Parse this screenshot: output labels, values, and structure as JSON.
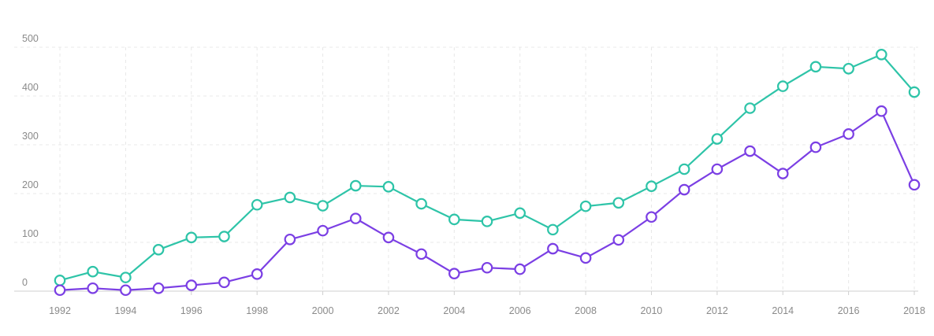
{
  "chart_data": {
    "type": "line",
    "title": "",
    "xlabel": "",
    "ylabel": "",
    "x": [
      1992,
      1993,
      1994,
      1995,
      1996,
      1997,
      1998,
      1999,
      2000,
      2001,
      2002,
      2003,
      2004,
      2005,
      2006,
      2007,
      2008,
      2009,
      2010,
      2011,
      2012,
      2013,
      2014,
      2015,
      2016,
      2017,
      2018
    ],
    "xticks": [
      "1992",
      "1994",
      "1996",
      "1998",
      "2000",
      "2002",
      "2004",
      "2006",
      "2008",
      "2010",
      "2012",
      "2014",
      "2016",
      "2018"
    ],
    "yticks": [
      "0",
      "100",
      "200",
      "300",
      "400",
      "500"
    ],
    "ylim": [
      0,
      500
    ],
    "grid": true,
    "legend": "none",
    "series": [
      {
        "color": "#2ec4a8",
        "values": [
          22,
          40,
          28,
          85,
          110,
          112,
          177,
          192,
          175,
          216,
          214,
          179,
          147,
          143,
          160,
          126,
          174,
          181,
          215,
          250,
          312,
          375,
          420,
          460,
          456,
          485,
          408
        ]
      },
      {
        "color": "#7b3fe4",
        "values": [
          2,
          6,
          2,
          6,
          12,
          18,
          35,
          106,
          124,
          149,
          110,
          76,
          36,
          48,
          45,
          87,
          68,
          105,
          152,
          208,
          250,
          287,
          241,
          295,
          322,
          369,
          218
        ]
      }
    ]
  }
}
